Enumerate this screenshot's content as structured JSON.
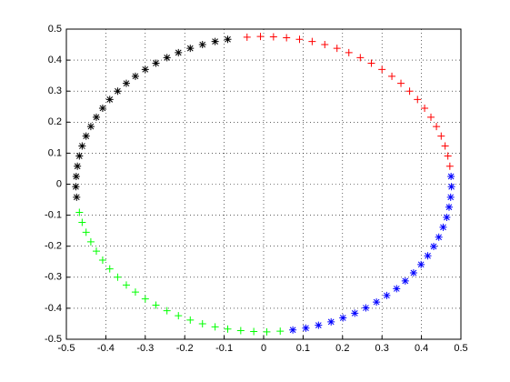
{
  "chart_data": {
    "type": "scatter",
    "xlim": [
      -0.5,
      0.5
    ],
    "ylim": [
      -0.5,
      0.5
    ],
    "xticks": [
      -0.5,
      -0.4,
      -0.3,
      -0.2,
      -0.1,
      0,
      0.1,
      0.2,
      0.3,
      0.4,
      0.5
    ],
    "yticks": [
      -0.5,
      -0.4,
      -0.3,
      -0.2,
      -0.1,
      0,
      0.1,
      0.2,
      0.3,
      0.4,
      0.5
    ],
    "grid": true,
    "series": [
      {
        "color": "#ff0000",
        "marker": "+",
        "x": [
          -0.042,
          -0.008,
          0.025,
          0.058,
          0.091,
          0.123,
          0.155,
          0.186,
          0.216,
          0.245,
          0.273,
          0.3,
          0.325,
          0.348,
          0.37,
          0.39,
          0.408,
          0.424,
          0.438,
          0.45,
          0.46,
          0.467,
          0.472
        ],
        "values": [
          0.474,
          0.476,
          0.475,
          0.472,
          0.467,
          0.46,
          0.45,
          0.438,
          0.424,
          0.408,
          0.39,
          0.37,
          0.348,
          0.325,
          0.3,
          0.273,
          0.245,
          0.216,
          0.186,
          0.155,
          0.123,
          0.091,
          0.058
        ]
      },
      {
        "color": "#0000ff",
        "marker": "*",
        "x": [
          0.475,
          0.476,
          0.474,
          0.47,
          0.464,
          0.455,
          0.444,
          0.431,
          0.416,
          0.399,
          0.38,
          0.359,
          0.337,
          0.312,
          0.286,
          0.259,
          0.231,
          0.201,
          0.171,
          0.139,
          0.107,
          0.074
        ],
        "values": [
          0.025,
          -0.008,
          -0.042,
          -0.074,
          -0.107,
          -0.139,
          -0.171,
          -0.201,
          -0.231,
          -0.259,
          -0.286,
          -0.312,
          -0.337,
          -0.359,
          -0.38,
          -0.399,
          -0.416,
          -0.431,
          -0.444,
          -0.455,
          -0.464,
          -0.47
        ]
      },
      {
        "color": "#00ff00",
        "marker": "+",
        "x": [
          0.042,
          0.008,
          -0.025,
          -0.058,
          -0.091,
          -0.123,
          -0.155,
          -0.186,
          -0.216,
          -0.245,
          -0.273,
          -0.3,
          -0.325,
          -0.348,
          -0.37,
          -0.39,
          -0.408,
          -0.424,
          -0.438,
          -0.45,
          -0.46,
          -0.467
        ],
        "values": [
          -0.474,
          -0.476,
          -0.475,
          -0.472,
          -0.467,
          -0.46,
          -0.45,
          -0.438,
          -0.424,
          -0.408,
          -0.39,
          -0.37,
          -0.348,
          -0.325,
          -0.3,
          -0.273,
          -0.245,
          -0.216,
          -0.186,
          -0.155,
          -0.123,
          -0.091
        ]
      },
      {
        "color": "#000000",
        "marker": "*",
        "x": [
          -0.474,
          -0.476,
          -0.475,
          -0.472,
          -0.467,
          -0.46,
          -0.45,
          -0.438,
          -0.424,
          -0.408,
          -0.39,
          -0.37,
          -0.348,
          -0.325,
          -0.3,
          -0.273,
          -0.245,
          -0.216,
          -0.186,
          -0.155,
          -0.123,
          -0.091
        ],
        "values": [
          -0.042,
          -0.008,
          0.025,
          0.058,
          0.091,
          0.123,
          0.155,
          0.186,
          0.216,
          0.245,
          0.273,
          0.3,
          0.325,
          0.348,
          0.37,
          0.39,
          0.408,
          0.424,
          0.438,
          0.45,
          0.46,
          0.467
        ]
      }
    ]
  }
}
